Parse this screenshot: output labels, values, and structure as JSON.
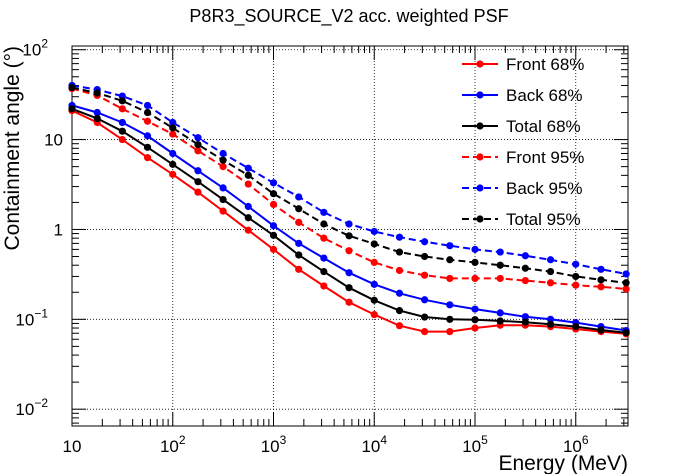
{
  "chart_data": {
    "type": "line",
    "title": "P8R3_SOURCE_V2 acc. weighted PSF",
    "xlabel": "Energy (MeV)",
    "ylabel": "Containment angle (°)",
    "xscale": "log",
    "yscale": "log",
    "xlim": [
      10,
      3300000
    ],
    "ylim": [
      0.0065,
      110
    ],
    "grid": true,
    "legend_position": "top-right",
    "x_ticks": [
      {
        "value": 10,
        "base": "10",
        "exp": ""
      },
      {
        "value": 100,
        "base": "10",
        "exp": "2"
      },
      {
        "value": 1000,
        "base": "10",
        "exp": "3"
      },
      {
        "value": 10000,
        "base": "10",
        "exp": "4"
      },
      {
        "value": 100000,
        "base": "10",
        "exp": "5"
      },
      {
        "value": 1000000,
        "base": "10",
        "exp": "6"
      }
    ],
    "y_ticks": [
      {
        "value": 0.01,
        "base": "10",
        "exp": "−2"
      },
      {
        "value": 0.1,
        "base": "10",
        "exp": "−1"
      },
      {
        "value": 1,
        "base": "1",
        "exp": ""
      },
      {
        "value": 10,
        "base": "10",
        "exp": ""
      },
      {
        "value": 100,
        "base": "10",
        "exp": "2"
      }
    ],
    "x": [
      10,
      17.8,
      31.6,
      56.2,
      100,
      178,
      316,
      562,
      1000,
      1780,
      3160,
      5620,
      10000,
      17800,
      31600,
      56200,
      100000,
      178000,
      316000,
      562000,
      1000000,
      1780000,
      3160000
    ],
    "series": [
      {
        "name": "Front 68%",
        "color": "#ff0000",
        "dashed": false,
        "values": [
          21,
          15.5,
          10,
          6.3,
          4.1,
          2.6,
          1.6,
          0.98,
          0.6,
          0.36,
          0.235,
          0.155,
          0.113,
          0.085,
          0.073,
          0.073,
          0.08,
          0.086,
          0.086,
          0.083,
          0.078,
          0.073,
          0.069
        ]
      },
      {
        "name": "Back 68%",
        "color": "#0000ff",
        "dashed": false,
        "values": [
          24,
          20,
          15.5,
          11,
          7,
          4.5,
          2.9,
          1.8,
          1.1,
          0.7,
          0.48,
          0.33,
          0.245,
          0.195,
          0.165,
          0.145,
          0.13,
          0.118,
          0.107,
          0.1,
          0.092,
          0.083,
          0.075
        ]
      },
      {
        "name": "Total 68%",
        "color": "#000000",
        "dashed": false,
        "values": [
          22,
          17.2,
          12.4,
          8.2,
          5.3,
          3.4,
          2.15,
          1.35,
          0.86,
          0.52,
          0.34,
          0.225,
          0.163,
          0.125,
          0.106,
          0.1,
          0.099,
          0.096,
          0.093,
          0.088,
          0.083,
          0.076,
          0.071
        ]
      },
      {
        "name": "Front 95%",
        "color": "#ff0000",
        "dashed": true,
        "values": [
          37,
          31,
          22,
          16,
          11.5,
          7.5,
          5,
          3.2,
          1.9,
          1.2,
          0.8,
          0.58,
          0.43,
          0.35,
          0.31,
          0.285,
          0.285,
          0.285,
          0.27,
          0.255,
          0.24,
          0.23,
          0.218
        ]
      },
      {
        "name": "Back 95%",
        "color": "#0000ff",
        "dashed": true,
        "values": [
          40,
          36,
          30.5,
          24,
          15.5,
          10.5,
          7,
          4.8,
          3.3,
          2.3,
          1.55,
          1.15,
          0.95,
          0.82,
          0.73,
          0.66,
          0.6,
          0.56,
          0.51,
          0.46,
          0.41,
          0.36,
          0.32
        ]
      },
      {
        "name": "Total 95%",
        "color": "#000000",
        "dashed": true,
        "values": [
          38,
          33,
          27,
          20,
          13.5,
          8.8,
          5.9,
          4,
          2.5,
          1.7,
          1.15,
          0.85,
          0.69,
          0.56,
          0.5,
          0.46,
          0.43,
          0.4,
          0.37,
          0.34,
          0.3,
          0.275,
          0.255
        ]
      }
    ]
  }
}
